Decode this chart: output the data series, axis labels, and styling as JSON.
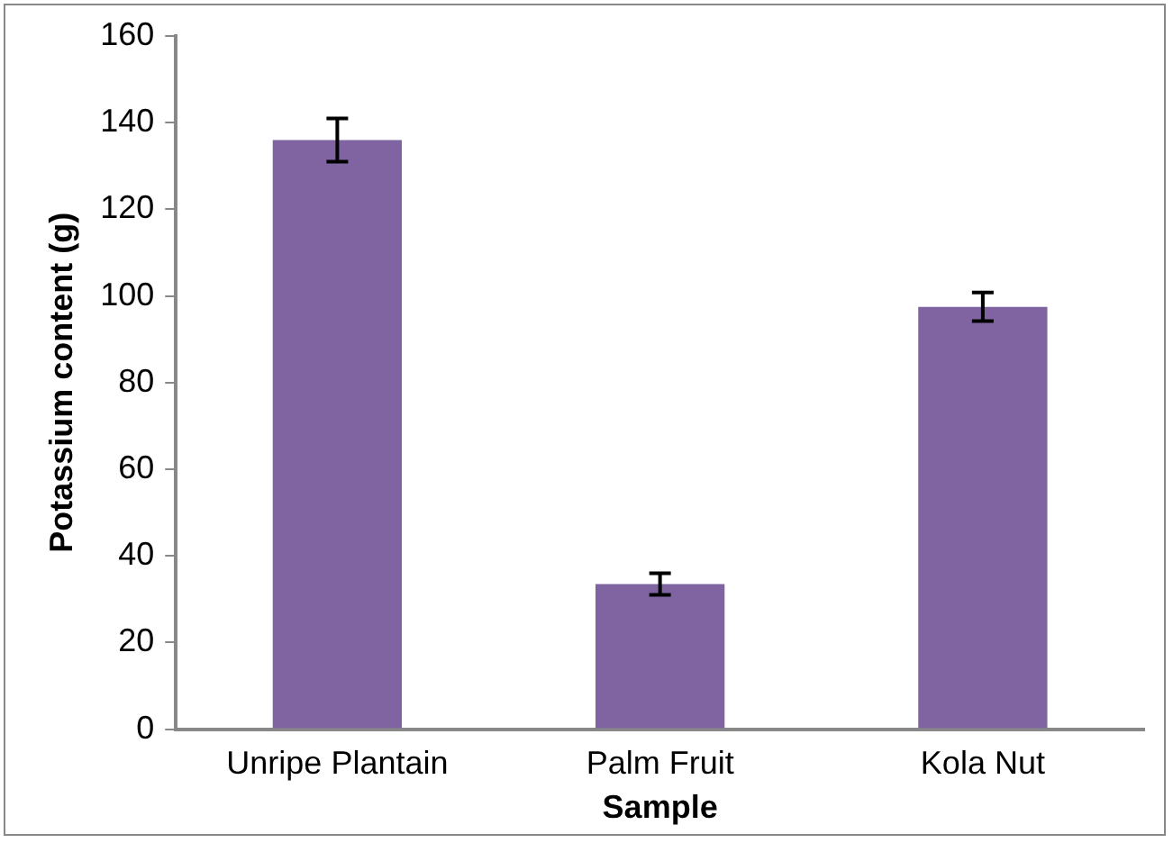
{
  "chart_data": {
    "type": "bar",
    "xlabel": "Sample",
    "ylabel": "Potassium content (g)",
    "categories": [
      "Unripe Plantain",
      "Palm Fruit",
      "Kola Nut"
    ],
    "values": [
      136,
      33.5,
      97.5
    ],
    "errors": [
      5,
      2.5,
      3.3
    ],
    "color": "#8064a2",
    "ylim": [
      0,
      160
    ],
    "yticks": [
      0,
      20,
      40,
      60,
      80,
      100,
      120,
      140,
      160
    ],
    "grid": false,
    "legend": false
  }
}
